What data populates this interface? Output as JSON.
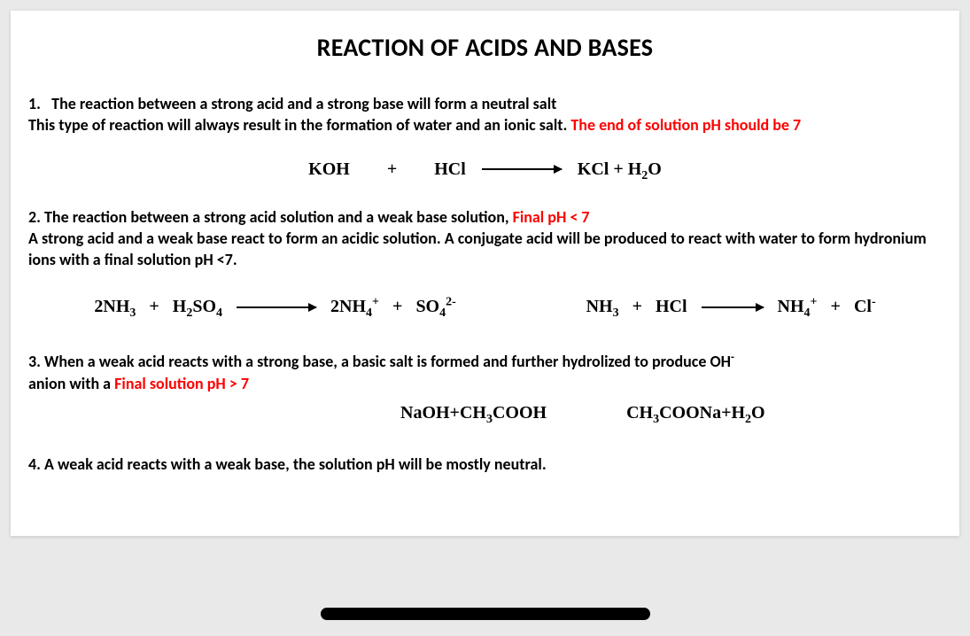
{
  "title": "REACTION OF ACIDS AND BASES",
  "colors": {
    "text": "#000000",
    "emphasis": "#ff0000",
    "page_bg": "#ffffff",
    "stage_bg": "#e9e9e9",
    "bar": "#000000"
  },
  "font": {
    "body_family": "Calibri",
    "formula_family": "Times New Roman",
    "title_size_pt": 28,
    "body_size_pt": 18,
    "formula_size_pt": 20,
    "weight": 700
  },
  "section1": {
    "heading_num": "1.",
    "heading": "The reaction between a strong acid and a strong base will form a neutral salt",
    "line2_black": "This type of reaction will always result in the formation of water and an ionic salt. ",
    "line2_red": "The end of solution pH should be 7",
    "eq": {
      "left1": "KOH",
      "plus1": "+",
      "left2": "HCl",
      "right": "KCl  +  H",
      "right_sub": "2",
      "right_tail": "O"
    }
  },
  "section2": {
    "line1_black": "2. The reaction between a strong acid solution and a weak base solution, ",
    "line1_red": "Final pH < 7",
    "line2": "A strong acid and a weak base react to form an acidic solution. A conjugate acid will be produced to react with water to form hydronium ions with a final solution pH <7.",
    "eqA": {
      "l1": "2NH",
      "l1s": "3",
      "plus1": "+",
      "l2": "H",
      "l2s": "2",
      "l2t": "SO",
      "l2s2": "4",
      "r1": "2NH",
      "r1s": "4",
      "r1sup": "+",
      "plus2": "+",
      "r2": "SO",
      "r2s": "4",
      "r2sup": "2-"
    },
    "eqB": {
      "l1": "NH",
      "l1s": "3",
      "plus1": "+",
      "l2": "HCl",
      "r1": "NH",
      "r1s": "4",
      "r1sup": "+",
      "plus2": "+",
      "r2": "Cl",
      "r2sup": "-"
    }
  },
  "section3": {
    "line1": "3. When a weak acid reacts with a strong base, a basic salt is formed and further hydrolized to produce OH",
    "line1_sup": "-",
    "line2_black": "anion with a ",
    "line2_red": "Final solution pH > 7",
    "eqL": {
      "a": "NaOH+CH",
      "as": "3",
      "b": "COOH"
    },
    "eqR": {
      "a": "CH",
      "as": "3",
      "b": "COONa+H",
      "bs": "2",
      "c": "O"
    }
  },
  "section4": {
    "text": "4. A weak acid reacts with a weak base, the solution pH will be mostly neutral."
  }
}
